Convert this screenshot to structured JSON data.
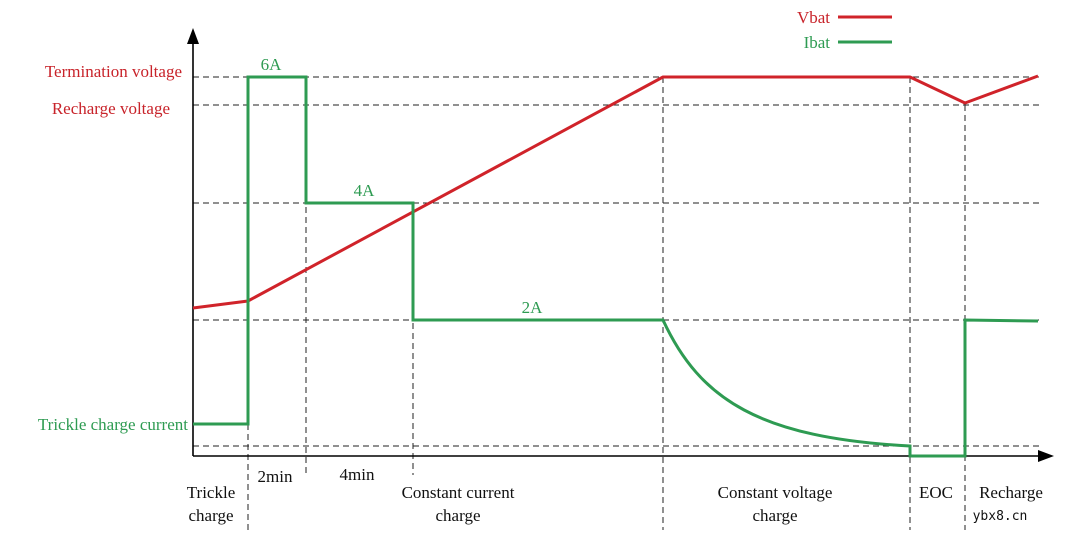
{
  "chart_data": {
    "type": "line",
    "title": "",
    "legend": {
      "placement": "top-right",
      "entries": [
        {
          "name": "Vbat",
          "color": "#d0232a"
        },
        {
          "name": "Ibat",
          "color": "#2e9b52"
        }
      ]
    },
    "y_levels": {
      "termination_voltage": "Termination voltage",
      "recharge_voltage": "Recharge voltage",
      "trickle_charge_current": "Trickle charge current"
    },
    "current_labels": [
      "6A",
      "4A",
      "2A"
    ],
    "durations": [
      "2min",
      "4min"
    ],
    "phases": [
      {
        "line1": "Trickle",
        "line2": "charge"
      },
      {
        "line1": "Constant current",
        "line2": "charge"
      },
      {
        "line1": "Constant voltage",
        "line2": "charge"
      },
      {
        "line1": "EOC",
        "line2": ""
      },
      {
        "line1": "Recharge",
        "line2": ""
      }
    ],
    "series": [
      {
        "name": "Vbat",
        "color": "#d0232a"
      },
      {
        "name": "Ibat",
        "color": "#2e9b52"
      }
    ]
  },
  "watermark": "ybx8.cn"
}
